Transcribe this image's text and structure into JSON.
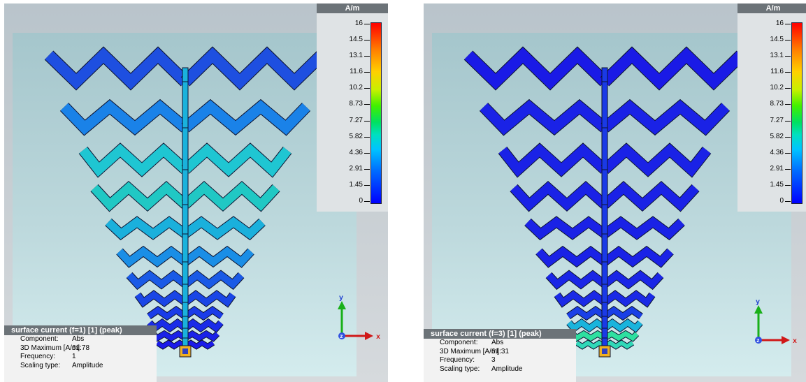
{
  "views": [
    {
      "legend": {
        "unit": "A/m",
        "ticks": [
          "16",
          "14.5",
          "13.1",
          "11.6",
          "10.2",
          "8.73",
          "7.27",
          "5.82",
          "4.36",
          "2.91",
          "1.45",
          "0"
        ]
      },
      "info": {
        "title": "surface current (f=1) [1] (peak)",
        "rows": [
          {
            "key": "Component:",
            "value": "Abs"
          },
          {
            "key": "3D Maximum [A/m]:",
            "value": "61.78"
          },
          {
            "key": "Frequency:",
            "value": "1"
          },
          {
            "key": "Scaling type:",
            "value": "Amplitude"
          }
        ]
      },
      "axes": {
        "y": "y",
        "x": "x",
        "z": "z"
      },
      "colors": {
        "rows": [
          "#1e4fe0",
          "#1a82e8",
          "#1fc6d2",
          "#20c8c4",
          "#1ab0dc",
          "#1a8ee6",
          "#1a5ae6",
          "#1a46e6",
          "#1a3ce8",
          "#1a2ce8",
          "#1a22e8",
          "#1a1aea"
        ],
        "feed": "#1ab2dc"
      }
    },
    {
      "legend": {
        "unit": "A/m",
        "ticks": [
          "16",
          "14.5",
          "13.1",
          "11.6",
          "10.2",
          "8.73",
          "7.27",
          "5.82",
          "4.36",
          "2.91",
          "1.45",
          "0"
        ]
      },
      "info": {
        "title": "surface current (f=3) [1] (peak)",
        "rows": [
          {
            "key": "Component:",
            "value": "Abs"
          },
          {
            "key": "3D Maximum [A/m]:",
            "value": "61.31"
          },
          {
            "key": "Frequency:",
            "value": "3"
          },
          {
            "key": "Scaling type:",
            "value": "Amplitude"
          }
        ]
      },
      "axes": {
        "y": "y",
        "x": "x",
        "z": "z"
      },
      "colors": {
        "rows": [
          "#1a1ae6",
          "#1a22e6",
          "#1a22e6",
          "#1a22e6",
          "#1a22e6",
          "#1a22e6",
          "#1a26e6",
          "#1a2ae6",
          "#1a40e6",
          "#1ab4dc",
          "#2ee0a0",
          "#30d8b8"
        ],
        "feed": "#1a3ae6"
      }
    }
  ]
}
